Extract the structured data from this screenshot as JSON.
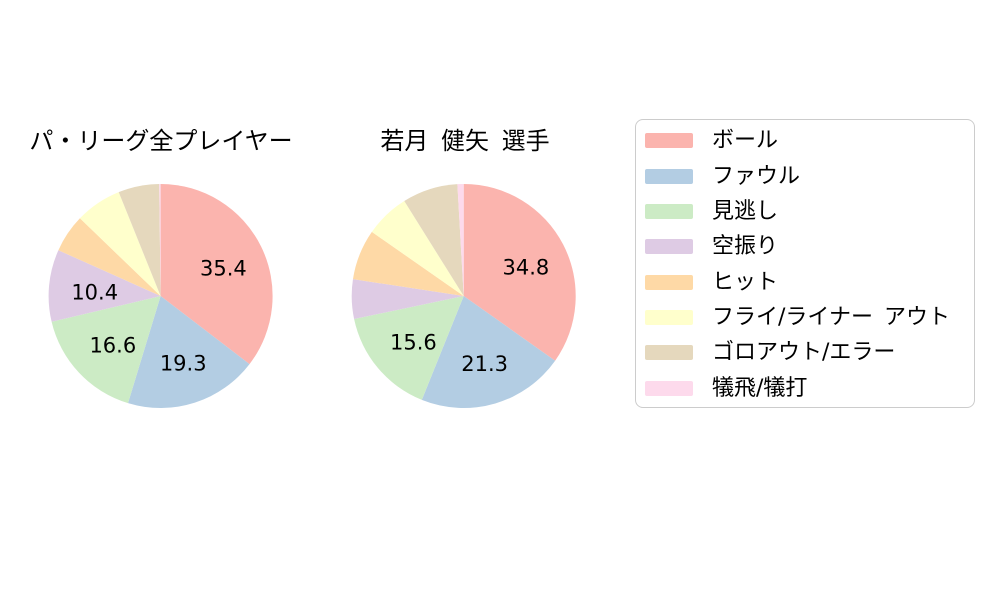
{
  "chart_data": {
    "type": "pie",
    "categories": [
      "ボール",
      "ファウル",
      "見逃し",
      "空振り",
      "ヒット",
      "フライ/ライナー アウト",
      "ゴロアウト/エラー",
      "犠飛/犠打"
    ],
    "colors": [
      "#fbb4ae",
      "#b3cde3",
      "#ccebc5",
      "#decbe4",
      "#fed9a6",
      "#ffffcc",
      "#e5d8bd",
      "#fddaec"
    ],
    "series": [
      {
        "name": "パ・リーグ全プレイヤー",
        "values": [
          35.4,
          19.3,
          16.6,
          10.4,
          5.5,
          6.7,
          5.9,
          0.2
        ]
      },
      {
        "name": "若月 健矢 選手",
        "values": [
          34.8,
          21.3,
          15.6,
          5.7,
          7.3,
          6.4,
          8.0,
          0.9
        ]
      }
    ],
    "start_angle": 90,
    "clockwise": true,
    "value_labels_shown": [
      [
        "35.4",
        "19.3",
        "16.6",
        "10.4"
      ],
      [
        "34.8",
        "21.3",
        "15.6"
      ]
    ],
    "value_label_min": 10,
    "value_label_decimals": 1,
    "legend_position": "right",
    "text_color": "#000000",
    "background_color": "#ffffff",
    "legend_border_color": "#cccccc"
  }
}
